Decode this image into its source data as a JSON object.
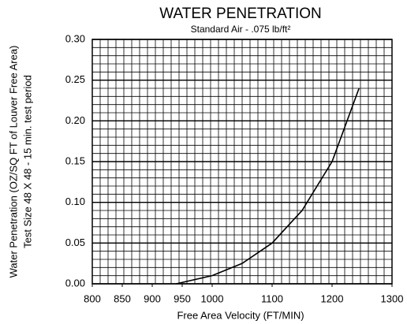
{
  "chart_data": {
    "type": "line",
    "title": "WATER PENETRATION",
    "subtitle": "Standard Air - .075 lb/ft²",
    "x_label": "Free Area Velocity (FT/MIN)",
    "y_label": [
      "Water Penetration (OZ/SQ FT of Louver Free Area)",
      "Test Size 48 X 48 - 15 min. test period"
    ],
    "x": [
      940,
      1000,
      1050,
      1100,
      1150,
      1200,
      1245
    ],
    "series": [
      {
        "name": "Water Penetration",
        "color": "#000000",
        "values": [
          0,
          0.01,
          0.025,
          0.05,
          0.09,
          0.15,
          0.24
        ]
      }
    ],
    "xlim": [
      800,
      1300
    ],
    "xticks": [
      800,
      850,
      900,
      950,
      1000,
      1100,
      1200,
      1300
    ],
    "ylim": [
      0,
      0.3
    ],
    "yticks": [
      {
        "value": 0,
        "label": "0.00"
      },
      0.05,
      {
        "value": 0.1,
        "label": "0.10"
      },
      0.15,
      {
        "value": 0.2,
        "label": "0.20"
      },
      0.25,
      {
        "value": 0.3,
        "label": "0.30"
      }
    ],
    "grid": true
  }
}
